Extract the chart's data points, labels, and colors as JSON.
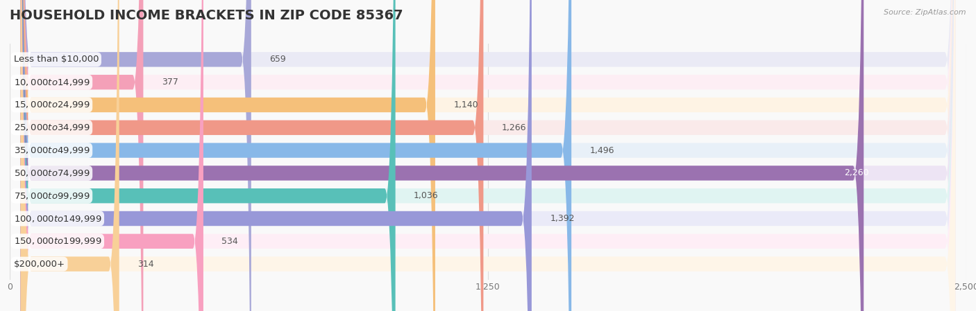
{
  "title": "HOUSEHOLD INCOME BRACKETS IN ZIP CODE 85367",
  "source": "Source: ZipAtlas.com",
  "categories": [
    "Less than $10,000",
    "$10,000 to $14,999",
    "$15,000 to $24,999",
    "$25,000 to $34,999",
    "$35,000 to $49,999",
    "$50,000 to $74,999",
    "$75,000 to $99,999",
    "$100,000 to $149,999",
    "$150,000 to $199,999",
    "$200,000+"
  ],
  "values": [
    659,
    377,
    1140,
    1266,
    1496,
    2260,
    1036,
    1392,
    534,
    314
  ],
  "bar_colors": [
    "#a8a8d8",
    "#f4a0b8",
    "#f5c07a",
    "#f09888",
    "#88b8e8",
    "#9b72b0",
    "#58c0b8",
    "#9898d8",
    "#f8a0c0",
    "#f8d098"
  ],
  "bar_bg_colors": [
    "#eaeaf5",
    "#fdeef4",
    "#fef3e4",
    "#faeaea",
    "#e8f0f8",
    "#ede4f4",
    "#e0f4f2",
    "#eaeaf8",
    "#feeef6",
    "#fef5e8"
  ],
  "xlim": [
    0,
    2500
  ],
  "xticks": [
    0,
    1250,
    2500
  ],
  "background_color": "#f9f9f9",
  "bar_height": 0.65,
  "title_fontsize": 14,
  "label_fontsize": 9.5,
  "value_fontsize": 9,
  "value_color": "#555555",
  "value_color_inside": "#ffffff",
  "grid_color": "#dddddd"
}
